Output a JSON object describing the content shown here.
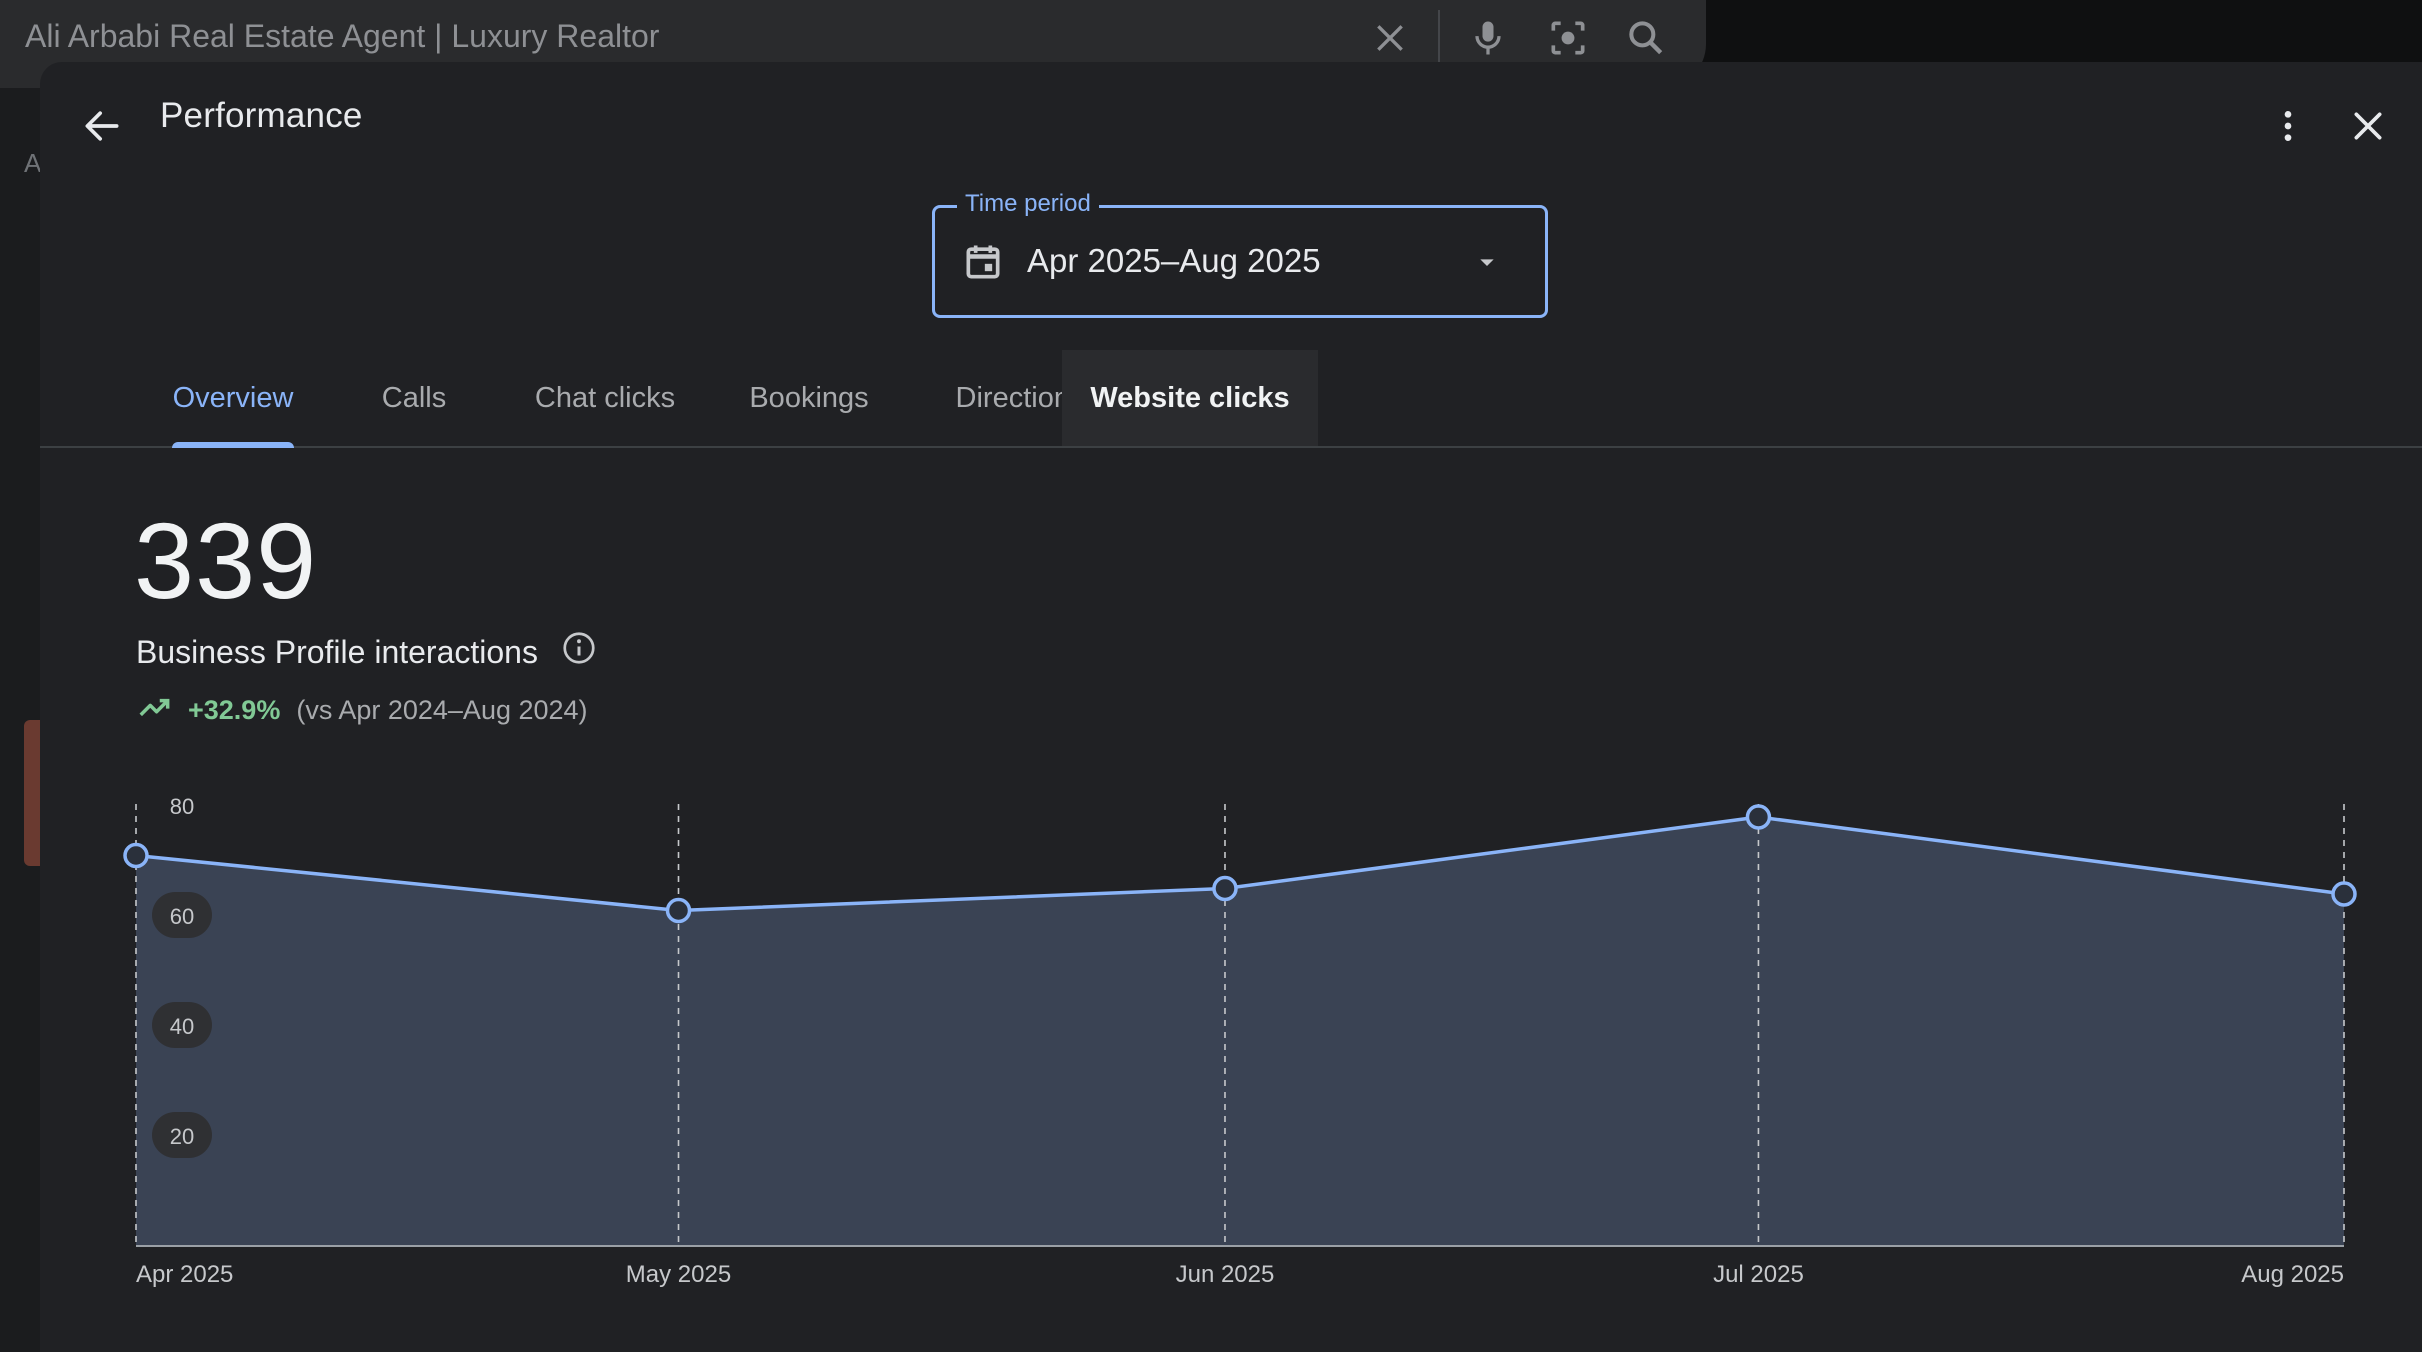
{
  "search": {
    "query": "Ali Arbabi Real Estate Agent | Luxury Realtor",
    "icons": [
      "close-icon",
      "mic-icon",
      "lens-icon",
      "search-icon"
    ]
  },
  "background": {
    "left_letter": "A"
  },
  "dialog": {
    "title": "Performance",
    "icons": [
      "back-arrow-icon",
      "more-vert-icon",
      "close-icon"
    ]
  },
  "time_period": {
    "label": "Time period",
    "value": "Apr 2025–Aug 2025",
    "icons": [
      "calendar-icon",
      "dropdown-arrow-icon"
    ]
  },
  "tabs": [
    {
      "label": "Overview",
      "active": true
    },
    {
      "label": "Calls"
    },
    {
      "label": "Chat clicks"
    },
    {
      "label": "Bookings"
    },
    {
      "label": "Directions"
    },
    {
      "label": "Website clicks",
      "hovered": true
    }
  ],
  "metric": {
    "value": "339",
    "label": "Business Profile interactions",
    "change": "+32.9%",
    "comparison": "(vs Apr 2024–Aug 2024)",
    "icons": [
      "info-icon",
      "trending-up-icon"
    ]
  },
  "colors": {
    "accent": "#8ab4f8",
    "positive": "#81c995",
    "area_fill": "#3a4354",
    "line": "#8ab4f8"
  },
  "chart_data": {
    "type": "area",
    "x": [
      "Apr 2025",
      "May 2025",
      "Jun 2025",
      "Jul 2025",
      "Aug 2025"
    ],
    "series": [
      {
        "values": [
          71,
          61,
          65,
          78,
          64
        ]
      }
    ],
    "yticks": [
      20,
      40,
      60,
      80
    ],
    "ylim": [
      0,
      80
    ],
    "grid": "vertical-dashed"
  }
}
